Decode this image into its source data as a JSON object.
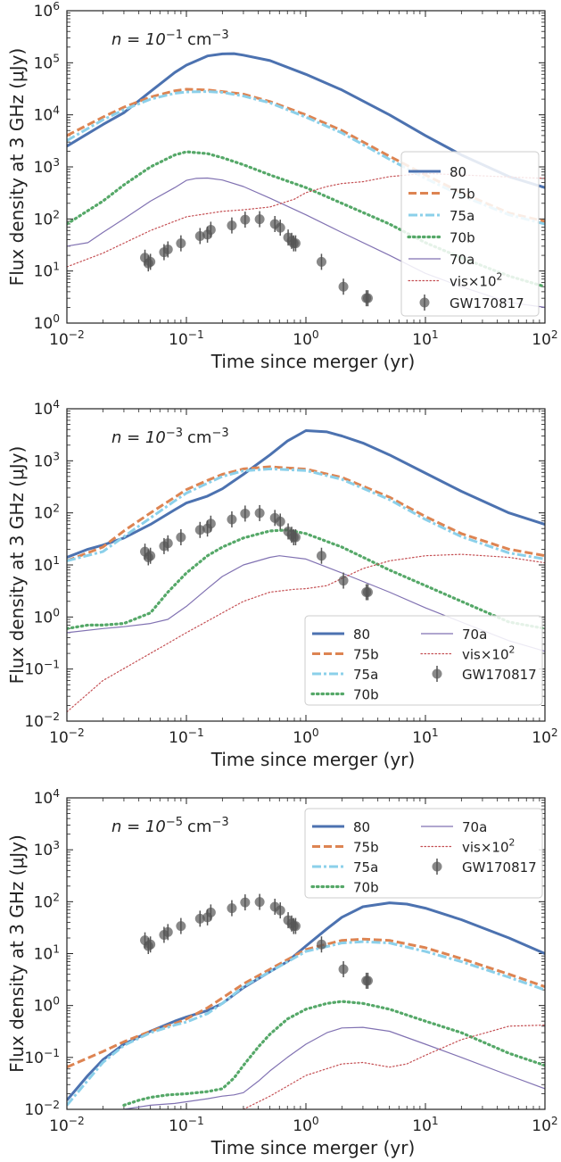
{
  "panels": [
    {
      "density_prefix": "n = 10",
      "density_exp": "−1",
      "density_unit": "cm",
      "density_unit_exp": "−3",
      "ylim_exp": [
        0,
        6
      ],
      "legend": {
        "layout": "one-column",
        "placement": "right"
      }
    },
    {
      "density_prefix": "n = 10",
      "density_exp": "−3",
      "density_unit": "cm",
      "density_unit_exp": "−3",
      "ylim_exp": [
        -2,
        4
      ],
      "legend": {
        "layout": "two-column",
        "placement": "lower-right"
      }
    },
    {
      "density_prefix": "n = 10",
      "density_exp": "−5",
      "density_unit": "cm",
      "density_unit_exp": "−3",
      "ylim_exp": [
        -2,
        4
      ],
      "legend": {
        "layout": "two-column",
        "placement": "upper-right"
      }
    }
  ],
  "axes": {
    "xlabel": "Time since merger (yr)",
    "ylabel": "Flux density at 3 GHz (μJy)",
    "xlim_exp": [
      -2,
      2
    ],
    "tick_base": "10",
    "x_tick_exps": [
      "−2",
      "−1",
      "0",
      "1",
      "2"
    ],
    "y_tick_exps_p1": [
      "0",
      "1",
      "2",
      "3",
      "4",
      "5",
      "6"
    ],
    "y_tick_exps_p23": [
      "−2",
      "−1",
      "0",
      "1",
      "2",
      "3",
      "4"
    ]
  },
  "legend_labels": {
    "l80": "80",
    "l75b": "75b",
    "l75a": "75a",
    "l70b": "70b",
    "l70a": "70a",
    "vis": "vis×10",
    "vis_exp": "2",
    "gw": "GW170817"
  },
  "chart_data": [
    {
      "type": "line",
      "title": "",
      "xlabel": "Time since merger (yr)",
      "ylabel": "Flux density at 3 GHz (μJy)",
      "xscale": "log",
      "yscale": "log",
      "xlim": [
        0.01,
        100
      ],
      "ylim": [
        1,
        1000000
      ],
      "series": [
        {
          "name": "80",
          "color": "#4c72b0",
          "style": "solid-thick",
          "x": [
            0.01,
            0.02,
            0.03,
            0.05,
            0.08,
            0.1,
            0.15,
            0.2,
            0.25,
            0.3,
            0.5,
            1,
            2,
            5,
            10,
            20,
            50,
            100
          ],
          "y": [
            2500,
            6500,
            11000,
            28000,
            65000,
            90000,
            135000,
            148000,
            150000,
            140000,
            110000,
            60000,
            30000,
            10000,
            4000,
            1700,
            650,
            400
          ]
        },
        {
          "name": "75b",
          "color": "#dd8452",
          "style": "dashed",
          "x": [
            0.01,
            0.02,
            0.03,
            0.05,
            0.08,
            0.1,
            0.15,
            0.2,
            0.3,
            0.5,
            1,
            2,
            5,
            10,
            20,
            50,
            100
          ],
          "y": [
            4000,
            9000,
            14000,
            22000,
            29000,
            31000,
            30000,
            28000,
            25000,
            18000,
            10000,
            5000,
            1600,
            700,
            320,
            130,
            90
          ]
        },
        {
          "name": "75a",
          "color": "#8bd0ea",
          "style": "dashdot",
          "x": [
            0.01,
            0.02,
            0.03,
            0.05,
            0.08,
            0.1,
            0.15,
            0.2,
            0.3,
            0.5,
            1,
            2,
            5,
            10,
            20,
            50,
            100
          ],
          "y": [
            3200,
            8000,
            12500,
            20000,
            26000,
            27500,
            28000,
            27000,
            23000,
            17000,
            9000,
            4500,
            1400,
            600,
            280,
            120,
            80
          ]
        },
        {
          "name": "70b",
          "color": "#55a868",
          "style": "dotted",
          "x": [
            0.01,
            0.02,
            0.03,
            0.05,
            0.08,
            0.1,
            0.15,
            0.2,
            0.3,
            0.5,
            1,
            2,
            5,
            10,
            20,
            50,
            100
          ],
          "y": [
            80,
            220,
            450,
            1000,
            1700,
            1950,
            1800,
            1500,
            1100,
            700,
            400,
            200,
            80,
            35,
            18,
            8,
            5
          ]
        },
        {
          "name": "70a",
          "color": "#8172b2",
          "style": "solid-thin",
          "x": [
            0.01,
            0.015,
            0.02,
            0.03,
            0.05,
            0.08,
            0.1,
            0.12,
            0.15,
            0.2,
            0.3,
            0.5,
            1,
            2,
            5,
            10,
            20,
            50,
            100
          ],
          "y": [
            30,
            35,
            55,
            100,
            220,
            400,
            550,
            600,
            610,
            560,
            420,
            250,
            120,
            55,
            20,
            9,
            5,
            2.5,
            2
          ]
        },
        {
          "name": "vis×10²",
          "color": "#c44e52",
          "style": "dotted-thin",
          "x": [
            0.01,
            0.02,
            0.05,
            0.1,
            0.2,
            0.3,
            0.5,
            0.8,
            1,
            1.5,
            2,
            3,
            5,
            10,
            20,
            50,
            100
          ],
          "y": [
            12,
            22,
            60,
            110,
            140,
            150,
            170,
            240,
            320,
            420,
            480,
            520,
            650,
            750,
            700,
            640,
            600
          ]
        }
      ],
      "observations": {
        "name": "GW170817",
        "x": [
          0.045,
          0.048,
          0.05,
          0.065,
          0.07,
          0.09,
          0.13,
          0.15,
          0.16,
          0.24,
          0.31,
          0.41,
          0.55,
          0.61,
          0.71,
          0.76,
          0.79,
          0.82,
          1.35,
          2.06,
          3.2,
          3.3
        ],
        "y": [
          18,
          14,
          15,
          23,
          26,
          34,
          47,
          50,
          62,
          75,
          97,
          99,
          80,
          68,
          44,
          38,
          34,
          34,
          15,
          5,
          3,
          3
        ]
      }
    },
    {
      "type": "line",
      "title": "",
      "xlabel": "Time since merger (yr)",
      "ylabel": "Flux density at 3 GHz (μJy)",
      "xscale": "log",
      "yscale": "log",
      "xlim": [
        0.01,
        100
      ],
      "ylim": [
        0.01,
        10000
      ],
      "series": [
        {
          "name": "80",
          "color": "#4c72b0",
          "style": "solid-thick",
          "x": [
            0.01,
            0.015,
            0.02,
            0.03,
            0.05,
            0.08,
            0.1,
            0.15,
            0.2,
            0.3,
            0.5,
            0.7,
            1,
            1.5,
            2,
            3,
            5,
            10,
            20,
            50,
            100
          ],
          "y": [
            14,
            20,
            24,
            33,
            60,
            115,
            155,
            210,
            290,
            550,
            1300,
            2400,
            3800,
            3600,
            3000,
            2200,
            1300,
            580,
            260,
            100,
            60
          ]
        },
        {
          "name": "75b",
          "color": "#dd8452",
          "style": "dashed",
          "x": [
            0.01,
            0.02,
            0.03,
            0.05,
            0.08,
            0.1,
            0.15,
            0.2,
            0.3,
            0.5,
            1,
            2,
            5,
            10,
            20,
            50,
            100
          ],
          "y": [
            12,
            22,
            45,
            100,
            200,
            280,
            420,
            550,
            700,
            770,
            690,
            480,
            200,
            85,
            40,
            20,
            15
          ]
        },
        {
          "name": "75a",
          "color": "#8bd0ea",
          "style": "dashdot",
          "x": [
            0.01,
            0.02,
            0.03,
            0.05,
            0.08,
            0.1,
            0.15,
            0.2,
            0.3,
            0.5,
            1,
            2,
            5,
            10,
            20,
            50,
            100
          ],
          "y": [
            12,
            18,
            35,
            80,
            170,
            240,
            370,
            500,
            640,
            700,
            650,
            440,
            180,
            75,
            35,
            17,
            13
          ]
        },
        {
          "name": "70b",
          "color": "#55a868",
          "style": "dotted",
          "x": [
            0.01,
            0.015,
            0.02,
            0.03,
            0.05,
            0.07,
            0.1,
            0.15,
            0.2,
            0.3,
            0.5,
            0.7,
            1,
            2,
            5,
            10,
            20,
            50,
            100
          ],
          "y": [
            0.6,
            0.7,
            0.7,
            0.75,
            1.2,
            3,
            7,
            15,
            22,
            33,
            45,
            47,
            40,
            22,
            8,
            4,
            2,
            0.8,
            0.6
          ]
        },
        {
          "name": "70a",
          "color": "#8172b2",
          "style": "solid-thin",
          "x": [
            0.01,
            0.02,
            0.03,
            0.05,
            0.07,
            0.1,
            0.15,
            0.2,
            0.3,
            0.5,
            0.6,
            1,
            2,
            5,
            10,
            20,
            50,
            100
          ],
          "y": [
            0.5,
            0.6,
            0.65,
            0.75,
            0.9,
            1.6,
            3.5,
            6,
            10,
            14,
            15,
            13,
            7,
            3,
            1.5,
            0.8,
            0.35,
            0.22
          ]
        },
        {
          "name": "vis×10²",
          "color": "#c44e52",
          "style": "dotted-thin",
          "x": [
            0.01,
            0.02,
            0.05,
            0.1,
            0.2,
            0.3,
            0.5,
            0.8,
            1,
            1.5,
            2,
            3,
            5,
            10,
            20,
            50,
            100
          ],
          "y": [
            0.015,
            0.06,
            0.2,
            0.5,
            1.2,
            2,
            3,
            3.4,
            3.5,
            4,
            5.5,
            8.5,
            12,
            15,
            16,
            14,
            11
          ]
        }
      ],
      "observations": {
        "name": "GW170817",
        "x": [
          0.045,
          0.048,
          0.05,
          0.065,
          0.07,
          0.09,
          0.13,
          0.15,
          0.16,
          0.24,
          0.31,
          0.41,
          0.55,
          0.61,
          0.71,
          0.76,
          0.79,
          0.82,
          1.35,
          2.06,
          3.2,
          3.3
        ],
        "y": [
          18,
          14,
          15,
          23,
          26,
          34,
          47,
          50,
          62,
          75,
          97,
          99,
          80,
          68,
          44,
          38,
          34,
          34,
          15,
          5,
          3,
          3
        ]
      }
    },
    {
      "type": "line",
      "title": "",
      "xlabel": "Time since merger (yr)",
      "ylabel": "Flux density at 3 GHz (μJy)",
      "xscale": "log",
      "yscale": "log",
      "xlim": [
        0.01,
        100
      ],
      "ylim": [
        0.01,
        10000
      ],
      "series": [
        {
          "name": "80",
          "color": "#4c72b0",
          "style": "solid-thick",
          "x": [
            0.01,
            0.015,
            0.02,
            0.03,
            0.05,
            0.08,
            0.1,
            0.15,
            0.2,
            0.3,
            0.5,
            0.7,
            1,
            1.5,
            2,
            3,
            5,
            7,
            10,
            20,
            50,
            100
          ],
          "y": [
            0.015,
            0.045,
            0.09,
            0.18,
            0.32,
            0.5,
            0.6,
            0.8,
            1.1,
            2.2,
            4.5,
            7,
            14,
            30,
            50,
            80,
            95,
            90,
            75,
            45,
            20,
            10
          ]
        },
        {
          "name": "75b",
          "color": "#dd8452",
          "style": "dashed",
          "x": [
            0.01,
            0.02,
            0.03,
            0.05,
            0.08,
            0.1,
            0.15,
            0.2,
            0.3,
            0.5,
            1,
            2,
            3,
            5,
            10,
            20,
            50,
            100
          ],
          "y": [
            0.065,
            0.13,
            0.2,
            0.32,
            0.45,
            0.55,
            0.9,
            1.4,
            2.6,
            5,
            12,
            18,
            19,
            18,
            13,
            8,
            4,
            2.3
          ]
        },
        {
          "name": "75a",
          "color": "#8bd0ea",
          "style": "dashdot",
          "x": [
            0.01,
            0.02,
            0.03,
            0.05,
            0.08,
            0.1,
            0.15,
            0.2,
            0.3,
            0.5,
            1,
            2,
            3,
            5,
            10,
            20,
            50,
            100
          ],
          "y": [
            0.012,
            0.08,
            0.17,
            0.3,
            0.42,
            0.48,
            0.7,
            1.1,
            2.3,
            4.5,
            11,
            16,
            17,
            16,
            11,
            7,
            3.5,
            2
          ]
        },
        {
          "name": "70b",
          "color": "#55a868",
          "style": "dotted",
          "x": [
            0.03,
            0.04,
            0.05,
            0.07,
            0.1,
            0.15,
            0.2,
            0.25,
            0.3,
            0.4,
            0.5,
            0.7,
            1,
            1.5,
            2,
            3,
            5,
            10,
            20,
            50,
            100
          ],
          "y": [
            0.012,
            0.015,
            0.017,
            0.019,
            0.02,
            0.022,
            0.025,
            0.04,
            0.07,
            0.16,
            0.28,
            0.55,
            0.85,
            1.1,
            1.2,
            1.1,
            0.85,
            0.5,
            0.3,
            0.12,
            0.07
          ]
        },
        {
          "name": "70a",
          "color": "#8172b2",
          "style": "solid-thin",
          "x": [
            0.03,
            0.05,
            0.08,
            0.1,
            0.15,
            0.2,
            0.25,
            0.3,
            0.4,
            0.5,
            0.7,
            1,
            1.5,
            2,
            3,
            5,
            10,
            20,
            50,
            100
          ],
          "y": [
            0.01,
            0.012,
            0.013,
            0.014,
            0.016,
            0.018,
            0.019,
            0.021,
            0.035,
            0.055,
            0.1,
            0.18,
            0.3,
            0.37,
            0.38,
            0.32,
            0.18,
            0.1,
            0.045,
            0.025
          ]
        },
        {
          "name": "vis×10²",
          "color": "#c44e52",
          "style": "dotted-thin",
          "x": [
            0.3,
            0.5,
            1,
            2,
            3,
            5,
            7,
            10,
            20,
            50,
            100
          ],
          "y": [
            0.01,
            0.018,
            0.045,
            0.075,
            0.08,
            0.065,
            0.075,
            0.11,
            0.22,
            0.4,
            0.42
          ]
        }
      ],
      "observations": {
        "name": "GW170817",
        "x": [
          0.045,
          0.048,
          0.05,
          0.065,
          0.07,
          0.09,
          0.13,
          0.15,
          0.16,
          0.24,
          0.31,
          0.41,
          0.55,
          0.61,
          0.71,
          0.76,
          0.79,
          0.82,
          1.35,
          2.06,
          3.2,
          3.3
        ],
        "y": [
          18,
          14,
          15,
          23,
          26,
          34,
          47,
          50,
          62,
          75,
          97,
          99,
          80,
          68,
          44,
          38,
          34,
          34,
          15,
          5,
          3,
          3
        ]
      }
    }
  ]
}
